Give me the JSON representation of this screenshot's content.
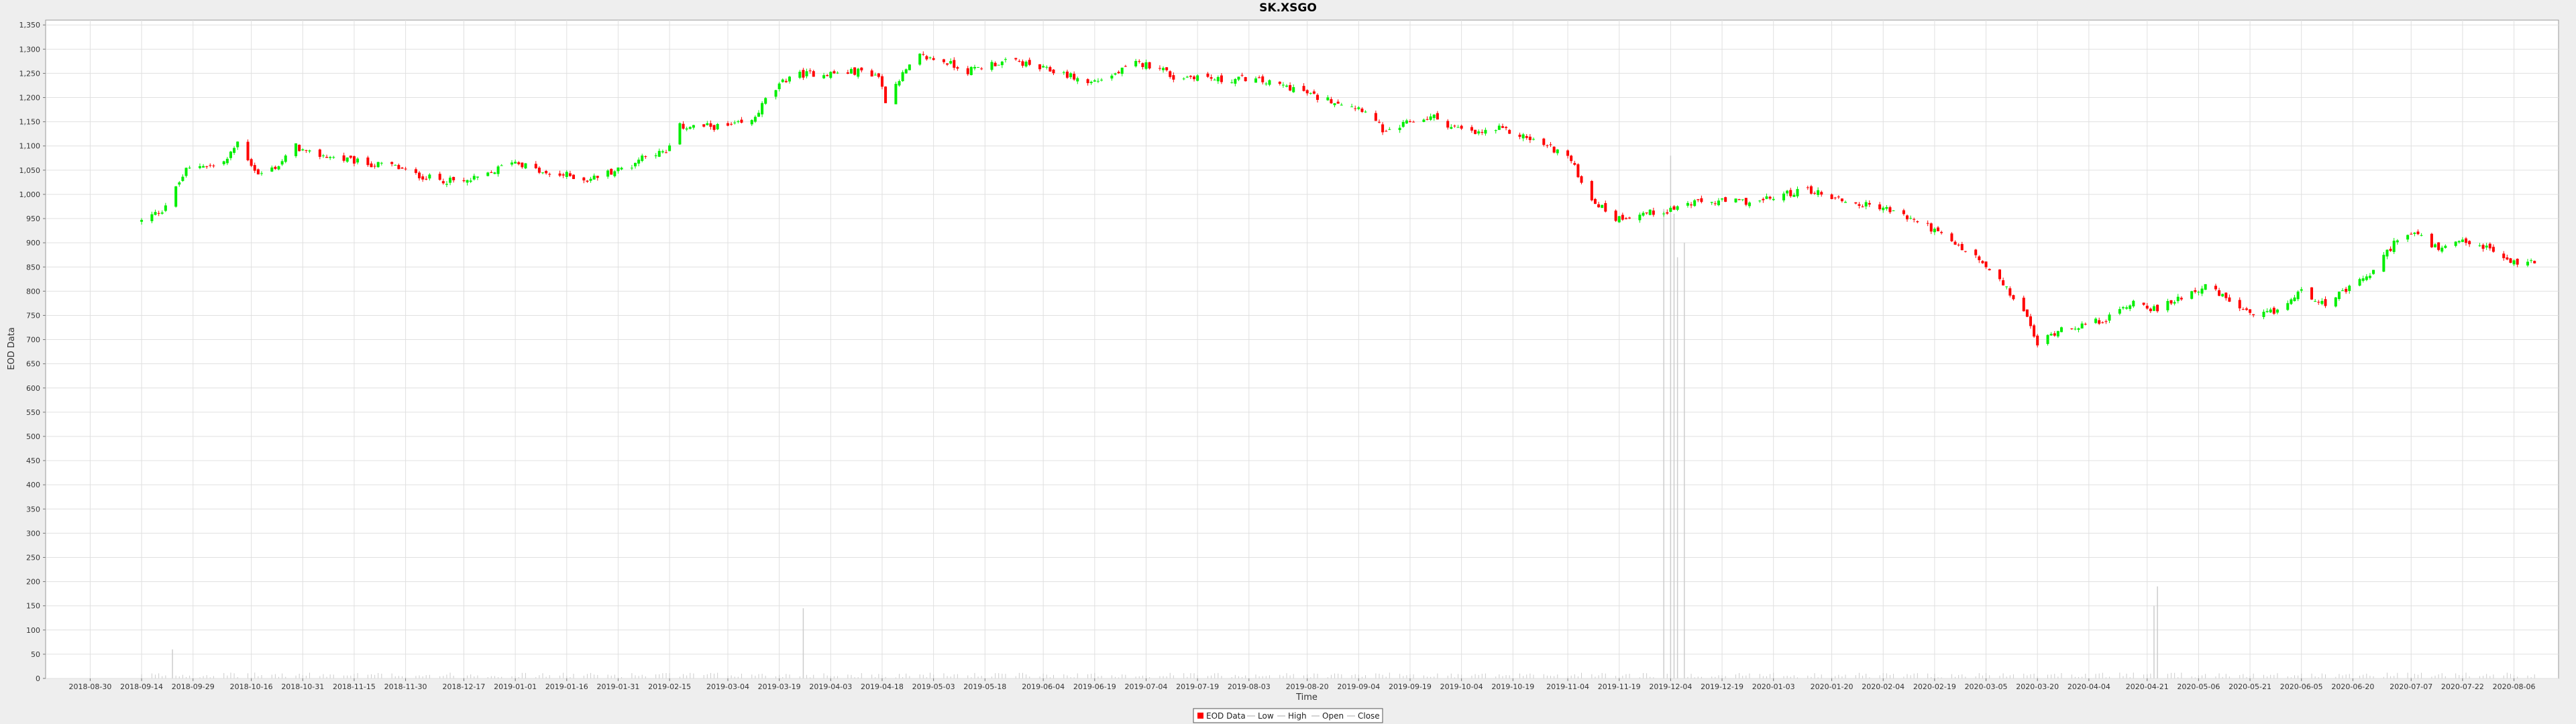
{
  "chart_data": {
    "type": "candlestick",
    "title": "SK.XSGO",
    "xlabel": "Time",
    "ylabel": "EOD Data",
    "ylim": [
      0,
      1360
    ],
    "y_ticks": [
      0,
      50,
      100,
      150,
      200,
      250,
      300,
      350,
      400,
      450,
      500,
      550,
      600,
      650,
      700,
      750,
      800,
      850,
      900,
      950,
      1000,
      1050,
      1100,
      1150,
      1200,
      1250,
      1300,
      1350
    ],
    "y_tick_labels": [
      "0",
      "50",
      "100",
      "150",
      "200",
      "250",
      "300",
      "350",
      "400",
      "450",
      "500",
      "550",
      "600",
      "650",
      "700",
      "750",
      "800",
      "850",
      "900",
      "950",
      "1,000",
      "1,050",
      "1,100",
      "1,150",
      "1,200",
      "1,250",
      "1,300",
      "1,350"
    ],
    "x_range": [
      "2018-09-14",
      "2020-08-12"
    ],
    "x_ticks": [
      "2018-08-30",
      "2018-09-14",
      "2018-09-29",
      "2018-10-16",
      "2018-10-31",
      "2018-11-15",
      "2018-11-30",
      "2018-12-17",
      "2019-01-01",
      "2019-01-16",
      "2019-01-31",
      "2019-02-15",
      "2019-03-04",
      "2019-03-19",
      "2019-04-03",
      "2019-04-18",
      "2019-05-03",
      "2019-05-18",
      "2019-06-04",
      "2019-06-19",
      "2019-07-04",
      "2019-07-19",
      "2019-08-03",
      "2019-08-20",
      "2019-09-04",
      "2019-09-19",
      "2019-10-04",
      "2019-10-19",
      "2019-11-04",
      "2019-11-19",
      "2019-12-04",
      "2019-12-19",
      "2020-01-03",
      "2020-01-20",
      "2020-02-04",
      "2020-02-19",
      "2020-03-05",
      "2020-03-20",
      "2020-04-04",
      "2020-04-21",
      "2020-05-06",
      "2020-05-21",
      "2020-06-05",
      "2020-06-20",
      "2020-07-07",
      "2020-07-22",
      "2020-08-06"
    ],
    "grid": true,
    "legend_position": "bottom-center",
    "legend": [
      {
        "name": "EOD Data",
        "color": "#ff0000",
        "kind": "box"
      },
      {
        "name": "Low",
        "color": "#aaaaaa",
        "kind": "line"
      },
      {
        "name": "High",
        "color": "#aaaaaa",
        "kind": "line"
      },
      {
        "name": "Open",
        "color": "#aaaaaa",
        "kind": "line"
      },
      {
        "name": "Close",
        "color": "#aaaaaa",
        "kind": "line"
      }
    ],
    "colors": {
      "up": "#00ee00",
      "down": "#ff0000",
      "volume": "#cccccc",
      "plot_bg": "#ffffff",
      "grid": "#e0e0e0"
    },
    "price_anchors": [
      [
        "2018-09-14",
        945
      ],
      [
        "2018-09-20",
        968
      ],
      [
        "2018-09-24",
        1012
      ],
      [
        "2018-09-27",
        1050
      ],
      [
        "2018-10-02",
        1062
      ],
      [
        "2018-10-05",
        1058
      ],
      [
        "2018-10-09",
        1072
      ],
      [
        "2018-10-12",
        1108
      ],
      [
        "2018-10-18",
        1040
      ],
      [
        "2018-10-24",
        1060
      ],
      [
        "2018-10-29",
        1100
      ],
      [
        "2018-11-01",
        1085
      ],
      [
        "2018-11-06",
        1080
      ],
      [
        "2018-11-12",
        1072
      ],
      [
        "2018-11-20",
        1062
      ],
      [
        "2018-11-26",
        1060
      ],
      [
        "2018-12-03",
        1040
      ],
      [
        "2018-12-10",
        1030
      ],
      [
        "2018-12-17",
        1025
      ],
      [
        "2018-12-24",
        1040
      ],
      [
        "2018-12-31",
        1070
      ],
      [
        "2019-01-04",
        1060
      ],
      [
        "2019-01-10",
        1040
      ],
      [
        "2019-01-16",
        1040
      ],
      [
        "2019-01-22",
        1030
      ],
      [
        "2019-01-28",
        1045
      ],
      [
        "2019-02-04",
        1060
      ],
      [
        "2019-02-08",
        1085
      ],
      [
        "2019-02-14",
        1085
      ],
      [
        "2019-02-18",
        1140
      ],
      [
        "2019-02-25",
        1140
      ],
      [
        "2019-03-04",
        1140
      ],
      [
        "2019-03-11",
        1150
      ],
      [
        "2019-03-15",
        1195
      ],
      [
        "2019-03-22",
        1245
      ],
      [
        "2019-03-29",
        1250
      ],
      [
        "2019-04-05",
        1250
      ],
      [
        "2019-04-12",
        1255
      ],
      [
        "2019-04-17",
        1245
      ],
      [
        "2019-04-19",
        1195
      ],
      [
        "2019-04-23",
        1240
      ],
      [
        "2019-04-29",
        1285
      ],
      [
        "2019-05-06",
        1275
      ],
      [
        "2019-05-13",
        1255
      ],
      [
        "2019-05-20",
        1270
      ],
      [
        "2019-05-27",
        1275
      ],
      [
        "2019-06-03",
        1260
      ],
      [
        "2019-06-10",
        1250
      ],
      [
        "2019-06-17",
        1230
      ],
      [
        "2019-06-24",
        1245
      ],
      [
        "2019-07-01",
        1270
      ],
      [
        "2019-07-08",
        1265
      ],
      [
        "2019-07-12",
        1240
      ],
      [
        "2019-07-19",
        1245
      ],
      [
        "2019-07-26",
        1235
      ],
      [
        "2019-08-02",
        1240
      ],
      [
        "2019-08-09",
        1230
      ],
      [
        "2019-08-16",
        1220
      ],
      [
        "2019-08-23",
        1200
      ],
      [
        "2019-08-30",
        1190
      ],
      [
        "2019-09-06",
        1175
      ],
      [
        "2019-09-12",
        1125
      ],
      [
        "2019-09-19",
        1150
      ],
      [
        "2019-09-26",
        1160
      ],
      [
        "2019-10-01",
        1140
      ],
      [
        "2019-10-08",
        1125
      ],
      [
        "2019-10-15",
        1135
      ],
      [
        "2019-10-22",
        1120
      ],
      [
        "2019-10-29",
        1100
      ],
      [
        "2019-11-04",
        1080
      ],
      [
        "2019-11-11",
        990
      ],
      [
        "2019-11-18",
        950
      ],
      [
        "2019-11-25",
        960
      ],
      [
        "2019-12-02",
        965
      ],
      [
        "2019-12-09",
        980
      ],
      [
        "2019-12-16",
        985
      ],
      [
        "2019-12-23",
        985
      ],
      [
        "2019-12-30",
        985
      ],
      [
        "2020-01-06",
        1000
      ],
      [
        "2020-01-13",
        1010
      ],
      [
        "2020-01-20",
        995
      ],
      [
        "2020-01-27",
        980
      ],
      [
        "2020-02-03",
        975
      ],
      [
        "2020-02-10",
        955
      ],
      [
        "2020-02-17",
        935
      ],
      [
        "2020-02-24",
        900
      ],
      [
        "2020-03-02",
        870
      ],
      [
        "2020-03-09",
        820
      ],
      [
        "2020-03-16",
        760
      ],
      [
        "2020-03-20",
        690
      ],
      [
        "2020-03-27",
        725
      ],
      [
        "2020-04-03",
        730
      ],
      [
        "2020-04-10",
        745
      ],
      [
        "2020-04-17",
        780
      ],
      [
        "2020-04-24",
        760
      ],
      [
        "2020-05-01",
        790
      ],
      [
        "2020-05-08",
        810
      ],
      [
        "2020-05-15",
        780
      ],
      [
        "2020-05-22",
        745
      ],
      [
        "2020-05-29",
        760
      ],
      [
        "2020-06-05",
        800
      ],
      [
        "2020-06-12",
        775
      ],
      [
        "2020-06-19",
        805
      ],
      [
        "2020-06-26",
        840
      ],
      [
        "2020-07-03",
        910
      ],
      [
        "2020-07-08",
        920
      ],
      [
        "2020-07-15",
        885
      ],
      [
        "2020-07-22",
        900
      ],
      [
        "2020-07-29",
        890
      ],
      [
        "2020-08-05",
        860
      ],
      [
        "2020-08-12",
        860
      ]
    ],
    "volume_spikes": [
      [
        "2018-09-23",
        60
      ],
      [
        "2019-03-26",
        145
      ],
      [
        "2019-12-02",
        970
      ],
      [
        "2019-12-04",
        1080
      ],
      [
        "2019-12-05",
        960
      ],
      [
        "2019-12-06",
        870
      ],
      [
        "2019-12-08",
        900
      ],
      [
        "2020-04-23",
        150
      ],
      [
        "2020-04-24",
        190
      ]
    ]
  }
}
